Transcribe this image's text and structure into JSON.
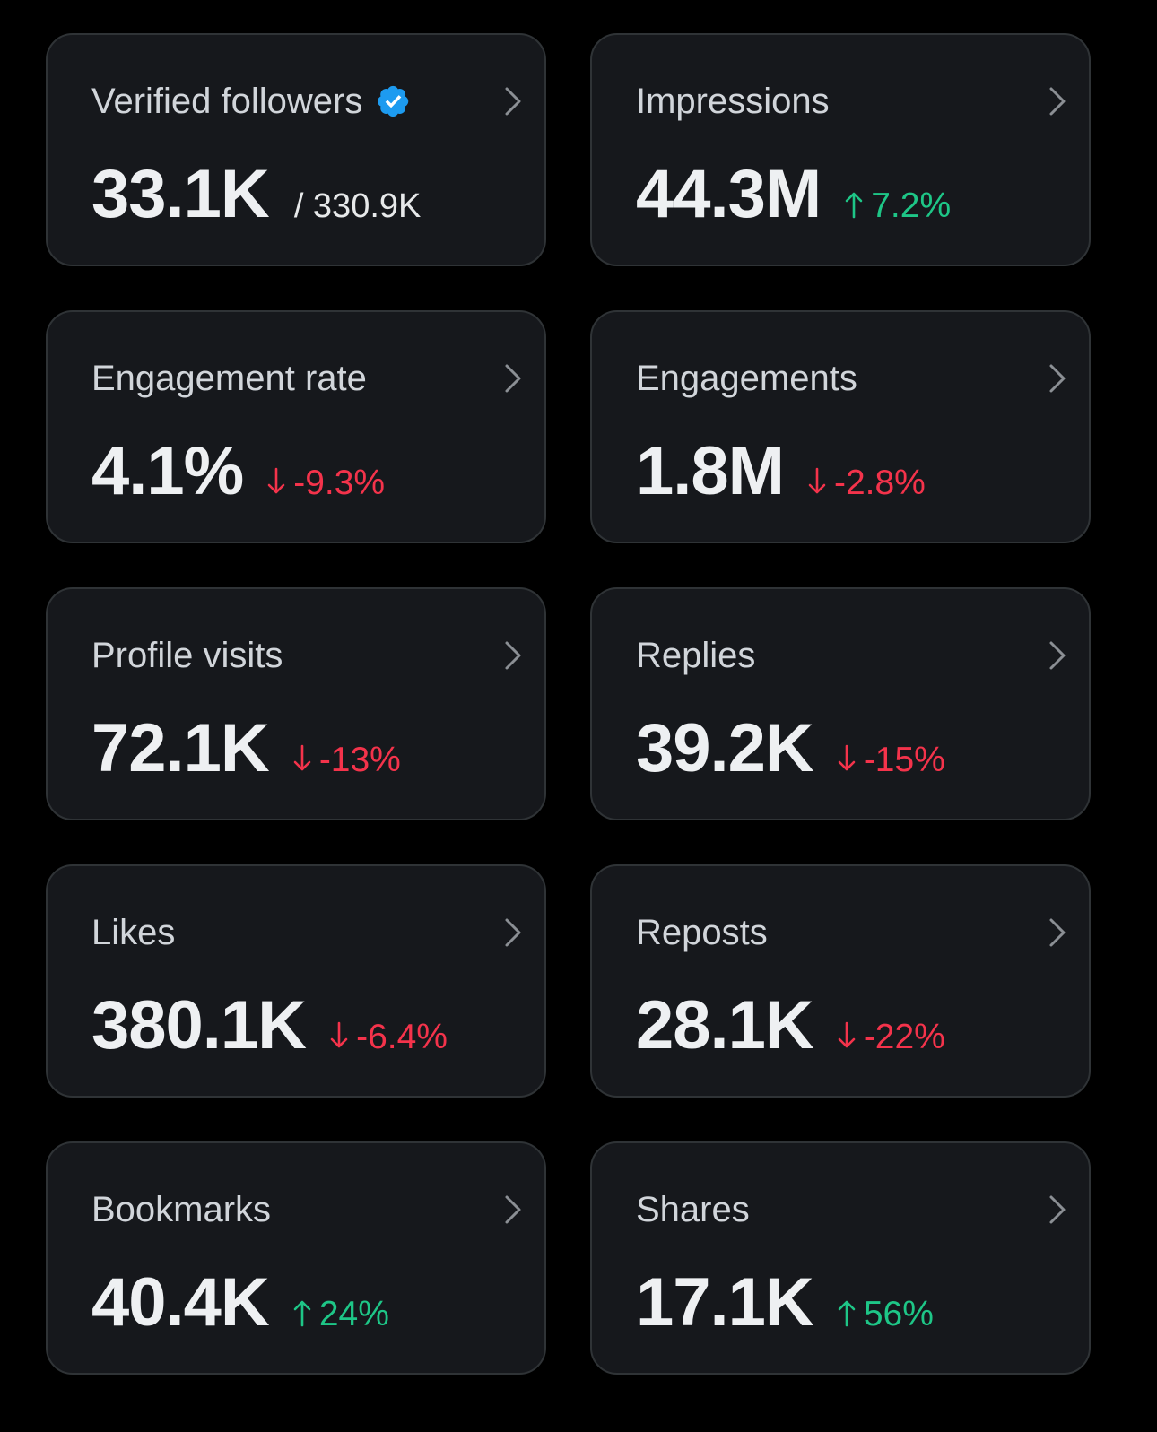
{
  "cards": [
    {
      "title": "Verified followers",
      "value": "33.1K",
      "total": "/ 330.9K",
      "verified": true
    },
    {
      "title": "Impressions",
      "value": "44.3M",
      "change": "7.2%",
      "direction": "up"
    },
    {
      "title": "Engagement rate",
      "value": "4.1%",
      "change": "-9.3%",
      "direction": "down"
    },
    {
      "title": "Engagements",
      "value": "1.8M",
      "change": "-2.8%",
      "direction": "down"
    },
    {
      "title": "Profile visits",
      "value": "72.1K",
      "change": "-13%",
      "direction": "down"
    },
    {
      "title": "Replies",
      "value": "39.2K",
      "change": "-15%",
      "direction": "down"
    },
    {
      "title": "Likes",
      "value": "380.1K",
      "change": "-6.4%",
      "direction": "down"
    },
    {
      "title": "Reposts",
      "value": "28.1K",
      "change": "-22%",
      "direction": "down"
    },
    {
      "title": "Bookmarks",
      "value": "40.4K",
      "change": "24%",
      "direction": "up"
    },
    {
      "title": "Shares",
      "value": "17.1K",
      "change": "56%",
      "direction": "up"
    }
  ],
  "colors": {
    "background": "#000000",
    "card": "#16181c",
    "border": "#2f3336",
    "up": "#1ec687",
    "down": "#f4334b",
    "verified": "#1d9bf0"
  },
  "icons": {
    "chevron": "chevron-right-icon",
    "verified": "verified-badge-icon",
    "up": "arrow-up-icon",
    "down": "arrow-down-icon"
  }
}
